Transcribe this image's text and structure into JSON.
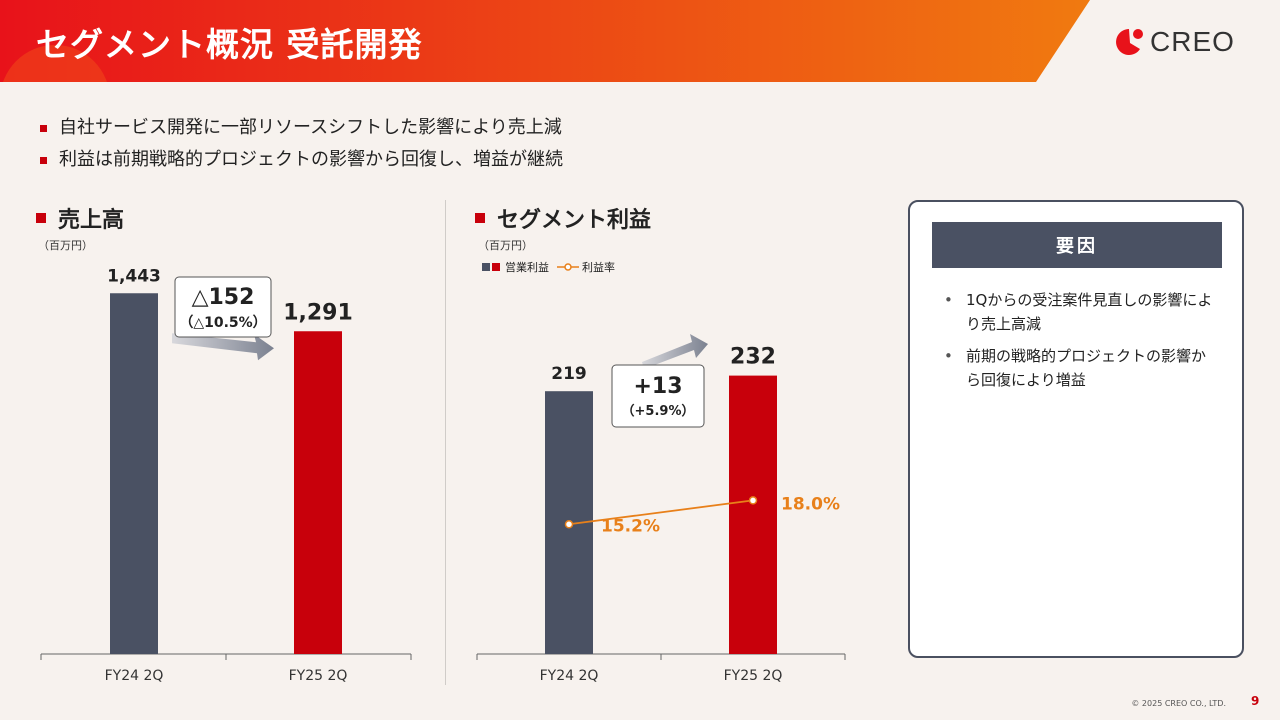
{
  "header": {
    "title": "セグメント概況 受託開発",
    "logo_text": "CREO",
    "colors": {
      "gradient_start": "#e8121a",
      "gradient_end": "#f07a10",
      "accent": "#c8000b"
    }
  },
  "bullets": [
    "自社サービス開発に一部リソースシフトした影響により売上減",
    "利益は前期戦略的プロジェクトの影響から回復し、増益が継続"
  ],
  "revenue": {
    "section_title": "売上高",
    "unit": "（百万円）",
    "diff_main": "△152",
    "diff_sub": "（△10.5%）"
  },
  "profit": {
    "section_title": "セグメント利益",
    "unit": "（百万円）",
    "legend_bar": "営業利益",
    "legend_line": "利益率",
    "diff_main": "+13",
    "diff_sub": "（+5.9%）"
  },
  "chart_data": [
    {
      "type": "bar",
      "title": "売上高",
      "unit": "百万円",
      "categories": [
        "FY24 2Q",
        "FY25 2Q"
      ],
      "values": [
        1443,
        1291
      ],
      "value_labels": [
        "1,443",
        "1,291"
      ],
      "colors": [
        "#4a5163",
        "#c8000b"
      ],
      "ylim": [
        0,
        1600
      ]
    },
    {
      "type": "bar",
      "title": "セグメント利益",
      "unit": "百万円",
      "categories": [
        "FY24 2Q",
        "FY25 2Q"
      ],
      "values": [
        219,
        232
      ],
      "value_labels": [
        "219",
        "232"
      ],
      "colors": [
        "#4a5163",
        "#c8000b"
      ],
      "ylim": [
        0,
        320
      ],
      "line_series": {
        "name": "利益率",
        "values": [
          15.2,
          18.0
        ],
        "labels": [
          "15.2%",
          "18.0%"
        ],
        "color": "#e8801a",
        "ylim": [
          0,
          45
        ]
      }
    }
  ],
  "factors": {
    "title": "要因",
    "items": [
      "1Qからの受注案件見直しの影響により売上高減",
      "前期の戦略的プロジェクトの影響から回復により増益"
    ]
  },
  "footer": {
    "copyright": "© 2025 CREO CO., LTD.",
    "page": "9"
  }
}
